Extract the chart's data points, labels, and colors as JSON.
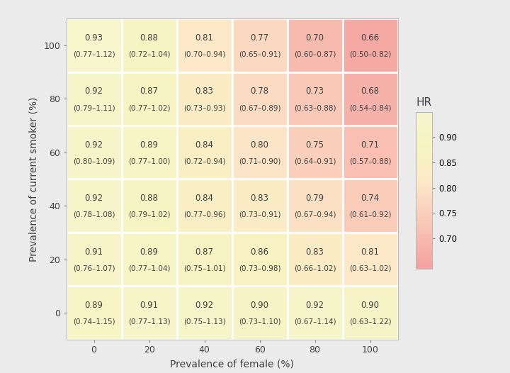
{
  "x_labels": [
    0,
    20,
    40,
    60,
    80,
    100
  ],
  "y_labels": [
    0,
    20,
    40,
    60,
    80,
    100
  ],
  "hr_values": [
    [
      0.89,
      0.91,
      0.92,
      0.9,
      0.92,
      0.9
    ],
    [
      0.91,
      0.89,
      0.87,
      0.86,
      0.83,
      0.81
    ],
    [
      0.92,
      0.88,
      0.84,
      0.83,
      0.79,
      0.74
    ],
    [
      0.92,
      0.89,
      0.84,
      0.8,
      0.75,
      0.71
    ],
    [
      0.92,
      0.87,
      0.83,
      0.78,
      0.73,
      0.68
    ],
    [
      0.93,
      0.88,
      0.81,
      0.77,
      0.7,
      0.66
    ]
  ],
  "ci_values": [
    [
      "(0.74–1.15)",
      "(0.77–1.13)",
      "(0.75–1.13)",
      "(0.73–1.10)",
      "(0.67–1.14)",
      "(0.63–1.22)"
    ],
    [
      "(0.76–1.07)",
      "(0.77–1.04)",
      "(0.75–1.01)",
      "(0.73–0.98)",
      "(0.66–1.02)",
      "(0.63–1.02)"
    ],
    [
      "(0.78–1.08)",
      "(0.79–1.02)",
      "(0.77–0.96)",
      "(0.73–0.91)",
      "(0.67–0.94)",
      "(0.61–0.92)"
    ],
    [
      "(0.80–1.09)",
      "(0.77–1.00)",
      "(0.72–0.94)",
      "(0.71–0.90)",
      "(0.64–0.91)",
      "(0.57–0.88)"
    ],
    [
      "(0.79–1.11)",
      "(0.77–1.02)",
      "(0.73–0.93)",
      "(0.67–0.89)",
      "(0.63–0.88)",
      "(0.54–0.84)"
    ],
    [
      "(0.77–1.12)",
      "(0.72–1.04)",
      "(0.70–0.94)",
      "(0.65–0.91)",
      "(0.60–0.87)",
      "(0.50–0.82)"
    ]
  ],
  "vmin": 0.64,
  "vmax": 0.95,
  "colorbar_ticks": [
    0.7,
    0.75,
    0.8,
    0.85,
    0.9
  ],
  "colorbar_ticklabels": [
    "0.70",
    "0.75",
    "0.80",
    "0.85",
    "0.90"
  ],
  "colorbar_label": "HR",
  "xlabel": "Prevalence of female (%)",
  "ylabel": "Prevalence of current smoker (%)",
  "background_color": "#EBEBEB",
  "grid_color": "#FFFFFF",
  "text_color": "#404040",
  "font_size_hr": 8.5,
  "font_size_ci": 7.5,
  "font_size_label": 10,
  "font_size_tick": 9,
  "cmap_colors": [
    [
      0.0,
      "#F4A0A0"
    ],
    [
      0.3,
      "#F9C9B8"
    ],
    [
      0.55,
      "#FDE8C8"
    ],
    [
      0.75,
      "#F7F4C2"
    ],
    [
      1.0,
      "#F5F5CE"
    ]
  ]
}
